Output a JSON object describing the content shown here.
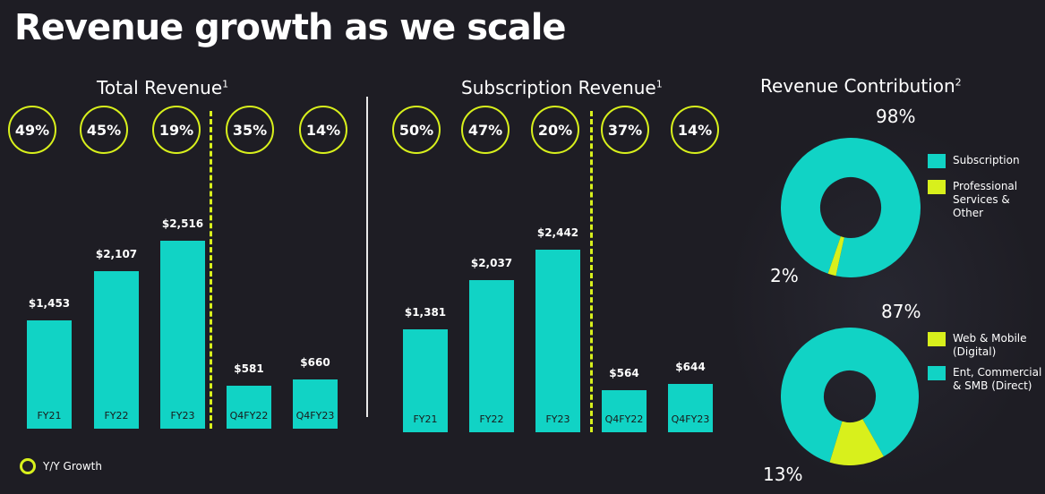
{
  "title": "Revenue growth as we scale",
  "legend_yy": "Y/Y Growth",
  "colors": {
    "accent_teal": "#11d3c5",
    "accent_lime": "#d8f01c",
    "background": "#1e1d24"
  },
  "chart_data": [
    {
      "type": "bar",
      "title": "Total Revenue",
      "title_sup": "1",
      "categories": [
        "FY21",
        "FY22",
        "FY23",
        "Q4FY22",
        "Q4FY23"
      ],
      "values": [
        1453,
        2107,
        2516,
        581,
        660
      ],
      "value_labels": [
        "$1,453",
        "$2,107",
        "$2,516",
        "$581",
        "$660"
      ],
      "yy_growth": [
        "49%",
        "45%",
        "19%",
        "35%",
        "14%"
      ],
      "ylim": [
        0,
        2600
      ]
    },
    {
      "type": "bar",
      "title": "Subscription Revenue",
      "title_sup": "1",
      "categories": [
        "FY21",
        "FY22",
        "FY23",
        "Q4FY22",
        "Q4FY23"
      ],
      "values": [
        1381,
        2037,
        2442,
        564,
        644
      ],
      "value_labels": [
        "$1,381",
        "$2,037",
        "$2,442",
        "$564",
        "$644"
      ],
      "yy_growth": [
        "50%",
        "47%",
        "20%",
        "37%",
        "14%"
      ],
      "ylim": [
        0,
        2600
      ]
    },
    {
      "type": "pie",
      "title": "Revenue Contribution",
      "title_sup": "2",
      "slices": [
        {
          "label": "Subscription",
          "value": 98,
          "label_text": "98%",
          "color": "#11d3c5"
        },
        {
          "label": "Professional Services & Other",
          "value": 2,
          "label_text": "2%",
          "color": "#d8f01c"
        }
      ]
    },
    {
      "type": "pie",
      "slices": [
        {
          "label": "Ent, Commercial & SMB (Direct)",
          "value": 87,
          "label_text": "87%",
          "color": "#11d3c5"
        },
        {
          "label": "Web & Mobile (Digital)",
          "value": 13,
          "label_text": "13%",
          "color": "#d8f01c"
        }
      ]
    }
  ],
  "donut1_legend": [
    {
      "label": "Subscription",
      "color": "#11d3c5"
    },
    {
      "label": "Professional Services & Other",
      "color": "#d8f01c"
    }
  ],
  "donut2_legend": [
    {
      "label": "Web & Mobile (Digital)",
      "color": "#d8f01c"
    },
    {
      "label": "Ent, Commercial & SMB  (Direct)",
      "color": "#11d3c5"
    }
  ]
}
